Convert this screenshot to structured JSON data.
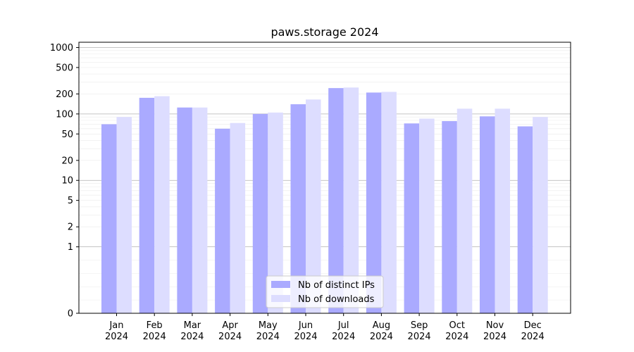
{
  "chart_data": {
    "type": "bar",
    "title": "paws.storage 2024",
    "xlabel": "",
    "ylabel": "",
    "y_scale": "symlog",
    "ylim": [
      0,
      1200
    ],
    "y_ticks": [
      0,
      1,
      2,
      5,
      10,
      20,
      50,
      100,
      200,
      500,
      1000
    ],
    "y_tick_labels": [
      "0",
      "1",
      "2",
      "5",
      "10",
      "20",
      "50",
      "100",
      "200",
      "500",
      "1000"
    ],
    "categories": [
      [
        "Jan",
        "2024"
      ],
      [
        "Feb",
        "2024"
      ],
      [
        "Mar",
        "2024"
      ],
      [
        "Apr",
        "2024"
      ],
      [
        "May",
        "2024"
      ],
      [
        "Jun",
        "2024"
      ],
      [
        "Jul",
        "2024"
      ],
      [
        "Aug",
        "2024"
      ],
      [
        "Sep",
        "2024"
      ],
      [
        "Oct",
        "2024"
      ],
      [
        "Nov",
        "2024"
      ],
      [
        "Dec",
        "2024"
      ]
    ],
    "series": [
      {
        "name": "Nb of distinct IPs",
        "color": "#aaaaff",
        "values": [
          70,
          175,
          125,
          60,
          100,
          140,
          245,
          210,
          72,
          78,
          92,
          65
        ]
      },
      {
        "name": "Nb of downloads",
        "color": "#ddddff",
        "values": [
          90,
          185,
          125,
          73,
          105,
          165,
          250,
          215,
          85,
          120,
          120,
          90
        ]
      }
    ],
    "grid": true,
    "legend_position": "bottom-center"
  }
}
